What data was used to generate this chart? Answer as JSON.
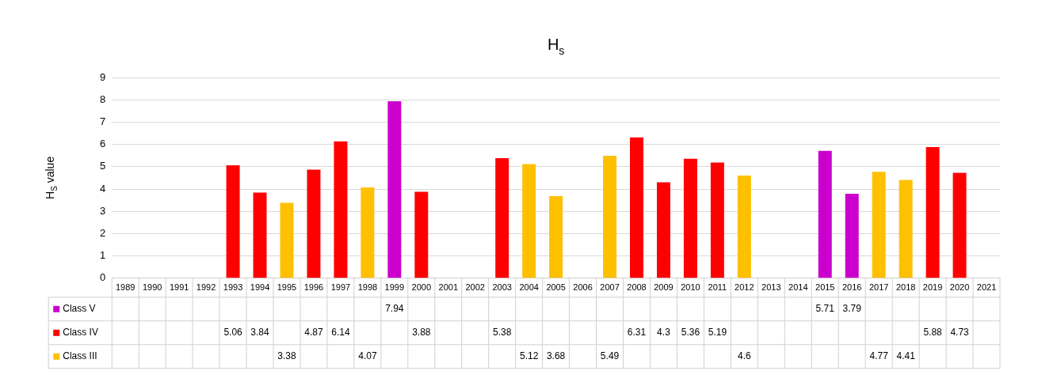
{
  "chart_data": {
    "type": "bar",
    "title": "H$_{s}$",
    "ylabel": "H$_{S}$ value",
    "categories": [
      "1989",
      "1990",
      "1991",
      "1992",
      "1993",
      "1994",
      "1995",
      "1996",
      "1997",
      "1998",
      "1999",
      "2000",
      "2001",
      "2002",
      "2003",
      "2004",
      "2005",
      "2006",
      "2007",
      "2008",
      "2009",
      "2010",
      "2011",
      "2012",
      "2013",
      "2014",
      "2015",
      "2016",
      "2017",
      "2018",
      "2019",
      "2020",
      "2021"
    ],
    "series": [
      {
        "name": "Class V",
        "color": "#cc00cc",
        "values": [
          null,
          null,
          null,
          null,
          null,
          null,
          null,
          null,
          null,
          null,
          7.94,
          null,
          null,
          null,
          null,
          null,
          null,
          null,
          null,
          null,
          null,
          null,
          null,
          null,
          null,
          null,
          5.71,
          3.79,
          null,
          null,
          null,
          null,
          null
        ]
      },
      {
        "name": "Class IV",
        "color": "#ff0000",
        "values": [
          null,
          null,
          null,
          null,
          5.06,
          3.84,
          null,
          4.87,
          6.14,
          null,
          null,
          3.88,
          null,
          null,
          5.38,
          null,
          null,
          null,
          null,
          6.31,
          4.3,
          5.36,
          5.19,
          null,
          null,
          null,
          null,
          null,
          null,
          null,
          5.88,
          4.73,
          null
        ]
      },
      {
        "name": "Class III",
        "color": "#ffc000",
        "values": [
          null,
          null,
          null,
          null,
          null,
          null,
          3.38,
          null,
          null,
          4.07,
          null,
          null,
          null,
          null,
          null,
          5.12,
          3.68,
          null,
          5.49,
          null,
          null,
          null,
          null,
          4.6,
          null,
          null,
          null,
          null,
          4.77,
          4.41,
          null,
          null,
          null
        ]
      }
    ],
    "ylim": [
      0,
      9
    ],
    "yticks": [
      0,
      1,
      2,
      3,
      4,
      5,
      6,
      7,
      8,
      9
    ],
    "grid": "y",
    "stacked": true,
    "legend": "bottom",
    "data_labels": true
  }
}
